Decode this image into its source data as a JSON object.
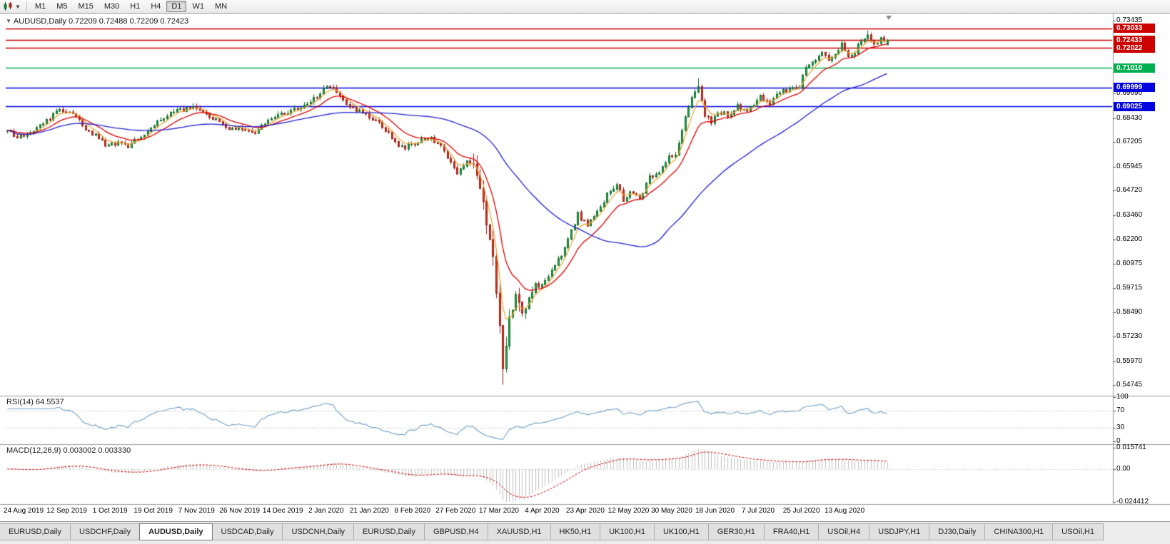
{
  "toolbar": {
    "chart_icon": "candlestick-chart-icon",
    "caret": "▼",
    "timeframe_buttons": [
      {
        "label": "M1"
      },
      {
        "label": "M5"
      },
      {
        "label": "M15"
      },
      {
        "label": "M30"
      },
      {
        "label": "H1"
      },
      {
        "label": "H4"
      },
      {
        "label": "D1",
        "active": true
      },
      {
        "label": "W1"
      },
      {
        "label": "MN"
      }
    ]
  },
  "chart": {
    "header_marker": "▼",
    "header_symbol": "AUDUSD,Daily",
    "header_ohlc": "0.72209 0.72488 0.72209 0.72423"
  },
  "colors": {
    "up_fill": "#2aa94c",
    "up_border": "#116e2c",
    "down_fill": "#e23a2b",
    "down_border": "#9c1d12",
    "ma_fast": "#eda83a",
    "ma_mid": "#dd0000",
    "ma_slow": "#2020d0",
    "rsi_line": "#6f9fc8",
    "macd_hist": "#bfbfbf",
    "macd_signal": "#d00000",
    "separator": "#9a9a9a",
    "grid_dash": "#c4c4c4"
  },
  "chart_data": {
    "type": "candlestick",
    "symbol": "AUDUSD",
    "period": "Daily",
    "open": "0.72209",
    "high": "0.72488",
    "low": "0.72209",
    "close": "0.72423",
    "candle_count": 271,
    "price_range": {
      "top": 0.7368,
      "bottom": 0.5447
    },
    "y_ticks": [
      "0.73435",
      "0.69690",
      "0.68430",
      "0.67205",
      "0.65945",
      "0.64720",
      "0.63460",
      "0.62200",
      "0.60975",
      "0.59715",
      "0.58490",
      "0.57230",
      "0.55970",
      "0.54745"
    ],
    "price_levels": [
      {
        "value": "0.73033",
        "price": 0.73033,
        "color": "#cc0000"
      },
      {
        "value": "0.72433",
        "price": 0.72433,
        "color": "#cc0000"
      },
      {
        "value": "0.72022",
        "price": 0.72022,
        "color": "#cc0000"
      },
      {
        "value": "0.71010",
        "price": 0.7101,
        "color": "#00b050"
      },
      {
        "value": "0.69999",
        "price": 0.69999,
        "color": "#0000e0"
      },
      {
        "value": "0.69025",
        "price": 0.69025,
        "color": "#0000e0"
      }
    ],
    "x_dates": [
      "24 Aug 2019",
      "12 Sep 2019",
      "1 Oct 2019",
      "19 Oct 2019",
      "7 Nov 2019",
      "26 Nov 2019",
      "14 Dec 2019",
      "2 Jan 2020",
      "21 Jan 2020",
      "8 Feb 2020",
      "27 Feb 2020",
      "17 Mar 2020",
      "4 Apr 2020",
      "23 Apr 2020",
      "12 May 2020",
      "30 May 2020",
      "18 Jun 2020",
      "7 Jul 2020",
      "25 Jul 2020",
      "13 Aug 2020"
    ],
    "price_keypoints": [
      [
        0,
        0.678
      ],
      [
        3,
        0.6748
      ],
      [
        7,
        0.6762
      ],
      [
        12,
        0.6832
      ],
      [
        16,
        0.6888
      ],
      [
        20,
        0.6862
      ],
      [
        24,
        0.6795
      ],
      [
        28,
        0.6742
      ],
      [
        31,
        0.6698
      ],
      [
        34,
        0.6722
      ],
      [
        37,
        0.6704
      ],
      [
        42,
        0.6762
      ],
      [
        48,
        0.6852
      ],
      [
        53,
        0.6885
      ],
      [
        57,
        0.6898
      ],
      [
        60,
        0.6868
      ],
      [
        64,
        0.6838
      ],
      [
        68,
        0.6792
      ],
      [
        72,
        0.6788
      ],
      [
        76,
        0.6772
      ],
      [
        80,
        0.6838
      ],
      [
        85,
        0.6872
      ],
      [
        90,
        0.6902
      ],
      [
        95,
        0.6958
      ],
      [
        98,
        0.7
      ],
      [
        101,
        0.6982
      ],
      [
        105,
        0.6905
      ],
      [
        109,
        0.6868
      ],
      [
        112,
        0.6845
      ],
      [
        116,
        0.6788
      ],
      [
        119,
        0.6722
      ],
      [
        122,
        0.6692
      ],
      [
        126,
        0.6722
      ],
      [
        129,
        0.6748
      ],
      [
        133,
        0.67
      ],
      [
        136,
        0.6622
      ],
      [
        138,
        0.6565
      ],
      [
        141,
        0.6632
      ],
      [
        143,
        0.6585
      ],
      [
        145,
        0.6482
      ],
      [
        147,
        0.6302
      ],
      [
        149,
        0.616
      ],
      [
        151,
        0.579
      ],
      [
        152,
        0.556
      ],
      [
        154,
        0.5805
      ],
      [
        156,
        0.594
      ],
      [
        158,
        0.582
      ],
      [
        161,
        0.5965
      ],
      [
        165,
        0.6005
      ],
      [
        168,
        0.6092
      ],
      [
        171,
        0.6175
      ],
      [
        173,
        0.6262
      ],
      [
        175,
        0.6352
      ],
      [
        178,
        0.6292
      ],
      [
        181,
        0.6362
      ],
      [
        184,
        0.6452
      ],
      [
        187,
        0.6512
      ],
      [
        189,
        0.6425
      ],
      [
        191,
        0.6472
      ],
      [
        194,
        0.6435
      ],
      [
        197,
        0.6542
      ],
      [
        200,
        0.6555
      ],
      [
        203,
        0.6642
      ],
      [
        205,
        0.6655
      ],
      [
        207,
        0.6788
      ],
      [
        210,
        0.6962
      ],
      [
        212,
        0.7002
      ],
      [
        214,
        0.6858
      ],
      [
        216,
        0.6825
      ],
      [
        218,
        0.6882
      ],
      [
        221,
        0.6862
      ],
      [
        224,
        0.6902
      ],
      [
        227,
        0.6872
      ],
      [
        231,
        0.6952
      ],
      [
        234,
        0.6925
      ],
      [
        237,
        0.6982
      ],
      [
        240,
        0.6992
      ],
      [
        243,
        0.7005
      ],
      [
        245,
        0.7112
      ],
      [
        248,
        0.7152
      ],
      [
        250,
        0.7192
      ],
      [
        252,
        0.7135
      ],
      [
        254,
        0.7172
      ],
      [
        256,
        0.7222
      ],
      [
        258,
        0.7152
      ],
      [
        260,
        0.7185
      ],
      [
        262,
        0.7242
      ],
      [
        264,
        0.7272
      ],
      [
        266,
        0.7215
      ],
      [
        268,
        0.7252
      ],
      [
        270,
        0.72423
      ]
    ],
    "moving_averages": [
      {
        "kind": "ema",
        "period": 5,
        "color": "#eda83a"
      },
      {
        "kind": "ema",
        "period": 13,
        "color": "#dd0000"
      },
      {
        "kind": "sma",
        "period": 50,
        "color": "#2020d0"
      }
    ],
    "indicators": {
      "rsi": {
        "label": "RSI(14) 64.5537",
        "period": 14,
        "last": "64.5537",
        "axis_labels": [
          {
            "text": "100",
            "value": 100
          },
          {
            "text": "70",
            "value": 70
          },
          {
            "text": "30",
            "value": 30
          },
          {
            "text": "0",
            "value": 0
          }
        ],
        "dashed_levels": [
          70,
          30
        ]
      },
      "macd": {
        "label": "MACD(12,26,9) 0.003002 0.003330",
        "fast": 12,
        "slow": 26,
        "signal": 9,
        "main_last": "0.003002",
        "signal_last": "0.003330",
        "scale_max": 0.015741,
        "scale_min": -0.024412,
        "axis_labels": [
          {
            "text": "0.015741",
            "value": 0.015741
          },
          {
            "text": "0.00",
            "value": 0
          },
          {
            "text": "-0.024412",
            "value": -0.024412
          }
        ]
      }
    }
  },
  "tabs": [
    {
      "label": "EURUSD,Daily"
    },
    {
      "label": "USDCHF,Daily"
    },
    {
      "label": "AUDUSD,Daily",
      "active": true
    },
    {
      "label": "USDCAD,Daily"
    },
    {
      "label": "USDCNH,Daily"
    },
    {
      "label": "EURUSD,Daily"
    },
    {
      "label": "GBPUSD,H4"
    },
    {
      "label": "XAUUSD,H1"
    },
    {
      "label": "HK50,H1"
    },
    {
      "label": "UK100,H1"
    },
    {
      "label": "UK100,H1"
    },
    {
      "label": "GER30,H1"
    },
    {
      "label": "FRA40,H1"
    },
    {
      "label": "USOil,H4"
    },
    {
      "label": "USDJPY,H1"
    },
    {
      "label": "DJ30,Daily"
    },
    {
      "label": "CHINA300,H1"
    },
    {
      "label": "USOil,H1"
    }
  ]
}
